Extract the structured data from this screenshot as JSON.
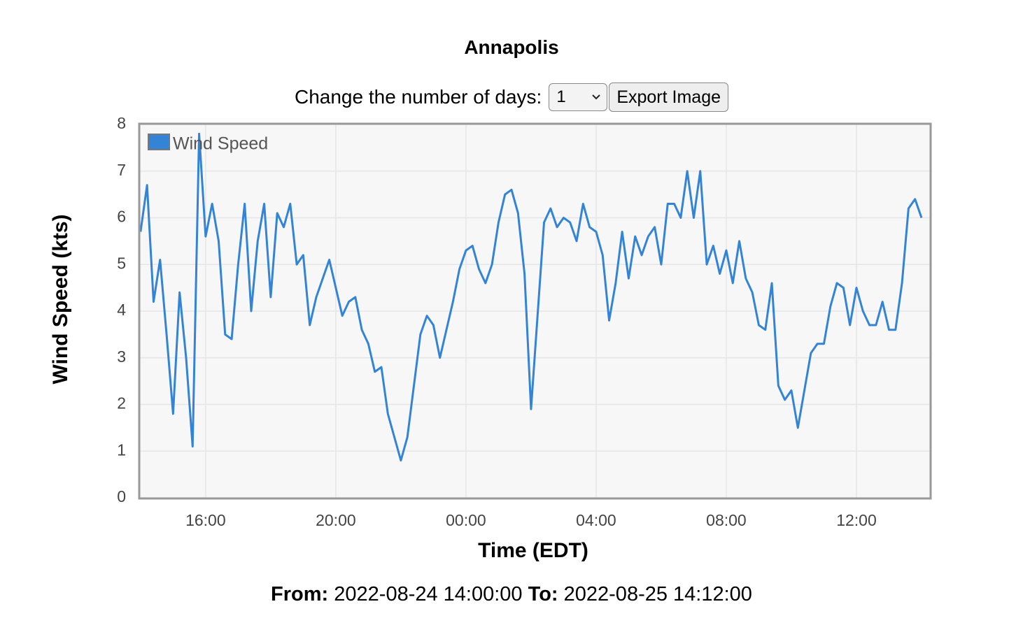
{
  "title": "Annapolis",
  "controls": {
    "days_label": "Change the number of days:",
    "days_value": "1",
    "export_button": "Export Image"
  },
  "chart_data": {
    "type": "line",
    "y_label": "Wind Speed (kts)",
    "x_label": "Time (EDT)",
    "x": [
      14.0,
      14.2,
      14.4,
      14.6,
      14.8,
      15.0,
      15.2,
      15.4,
      15.6,
      15.8,
      16.0,
      16.2,
      16.4,
      16.6,
      16.8,
      17.0,
      17.2,
      17.4,
      17.6,
      17.8,
      18.0,
      18.2,
      18.4,
      18.6,
      18.8,
      19.0,
      19.2,
      19.4,
      19.6,
      19.8,
      20.0,
      20.2,
      20.4,
      20.6,
      20.8,
      21.0,
      21.2,
      21.4,
      21.6,
      21.8,
      22.0,
      22.2,
      22.4,
      22.6,
      22.8,
      23.0,
      23.2,
      23.4,
      23.6,
      23.8,
      24.0,
      24.2,
      24.4,
      24.6,
      24.8,
      25.0,
      25.2,
      25.4,
      25.6,
      25.8,
      26.0,
      26.2,
      26.4,
      26.6,
      26.8,
      27.0,
      27.2,
      27.4,
      27.6,
      27.8,
      28.0,
      28.2,
      28.4,
      28.6,
      28.8,
      29.0,
      29.2,
      29.4,
      29.6,
      29.8,
      30.0,
      30.2,
      30.4,
      30.6,
      30.8,
      31.0,
      31.2,
      31.4,
      31.6,
      31.8,
      32.0,
      32.2,
      32.4,
      32.6,
      32.8,
      33.0,
      33.2,
      33.4,
      33.6,
      33.8,
      34.0,
      34.2,
      34.4,
      34.6,
      34.8,
      35.0,
      35.2,
      35.4,
      35.6,
      35.8,
      36.0,
      36.2,
      36.4,
      36.6,
      36.8,
      37.0,
      37.2,
      37.4,
      37.6,
      37.8,
      38.0
    ],
    "series": [
      {
        "name": "Wind Speed",
        "color": "#3383d6",
        "values": [
          5.7,
          6.7,
          4.2,
          5.1,
          3.5,
          1.8,
          4.4,
          3.0,
          1.1,
          7.8,
          5.6,
          6.3,
          5.5,
          3.5,
          3.4,
          5.0,
          6.3,
          4.0,
          5.5,
          6.3,
          4.3,
          6.1,
          5.8,
          6.3,
          5.0,
          5.2,
          3.7,
          4.3,
          4.7,
          5.1,
          4.5,
          3.9,
          4.2,
          4.3,
          3.6,
          3.3,
          2.7,
          2.8,
          1.8,
          1.3,
          0.8,
          1.3,
          2.4,
          3.5,
          3.9,
          3.7,
          3.0,
          3.6,
          4.2,
          4.9,
          5.3,
          5.4,
          4.9,
          4.6,
          5.0,
          5.9,
          6.5,
          6.6,
          6.1,
          4.8,
          1.9,
          3.9,
          5.9,
          6.2,
          5.8,
          6.0,
          5.9,
          5.5,
          6.3,
          5.8,
          5.7,
          5.2,
          3.8,
          4.6,
          5.7,
          4.7,
          5.6,
          5.2,
          5.6,
          5.8,
          5.0,
          6.3,
          6.3,
          6.0,
          7.0,
          6.0,
          7.0,
          5.0,
          5.4,
          4.8,
          5.3,
          4.6,
          5.5,
          4.7,
          4.4,
          3.7,
          3.6,
          4.6,
          2.4,
          2.1,
          2.3,
          1.5,
          2.3,
          3.1,
          3.3,
          3.3,
          4.1,
          4.6,
          4.5,
          3.7,
          4.5,
          4.0,
          3.7,
          3.7,
          4.2,
          3.6,
          3.6,
          4.6,
          6.2,
          6.4,
          6.0
        ]
      }
    ],
    "xlim": [
      13.96,
      38.28
    ],
    "xticks": [
      {
        "value": 16,
        "label": "16:00"
      },
      {
        "value": 20,
        "label": "20:00"
      },
      {
        "value": 24,
        "label": "00:00"
      },
      {
        "value": 28,
        "label": "04:00"
      },
      {
        "value": 32,
        "label": "08:00"
      },
      {
        "value": 36,
        "label": "12:00"
      }
    ],
    "ylim": [
      0,
      8
    ],
    "yticks": [
      0,
      1,
      2,
      3,
      4,
      5,
      6,
      7,
      8
    ],
    "grid": true,
    "legend": "upper left"
  },
  "footer": {
    "from_label": "From:",
    "from": "2022-08-24 14:00:00",
    "to_label": "To:",
    "to": "2022-08-25 14:12:00"
  }
}
